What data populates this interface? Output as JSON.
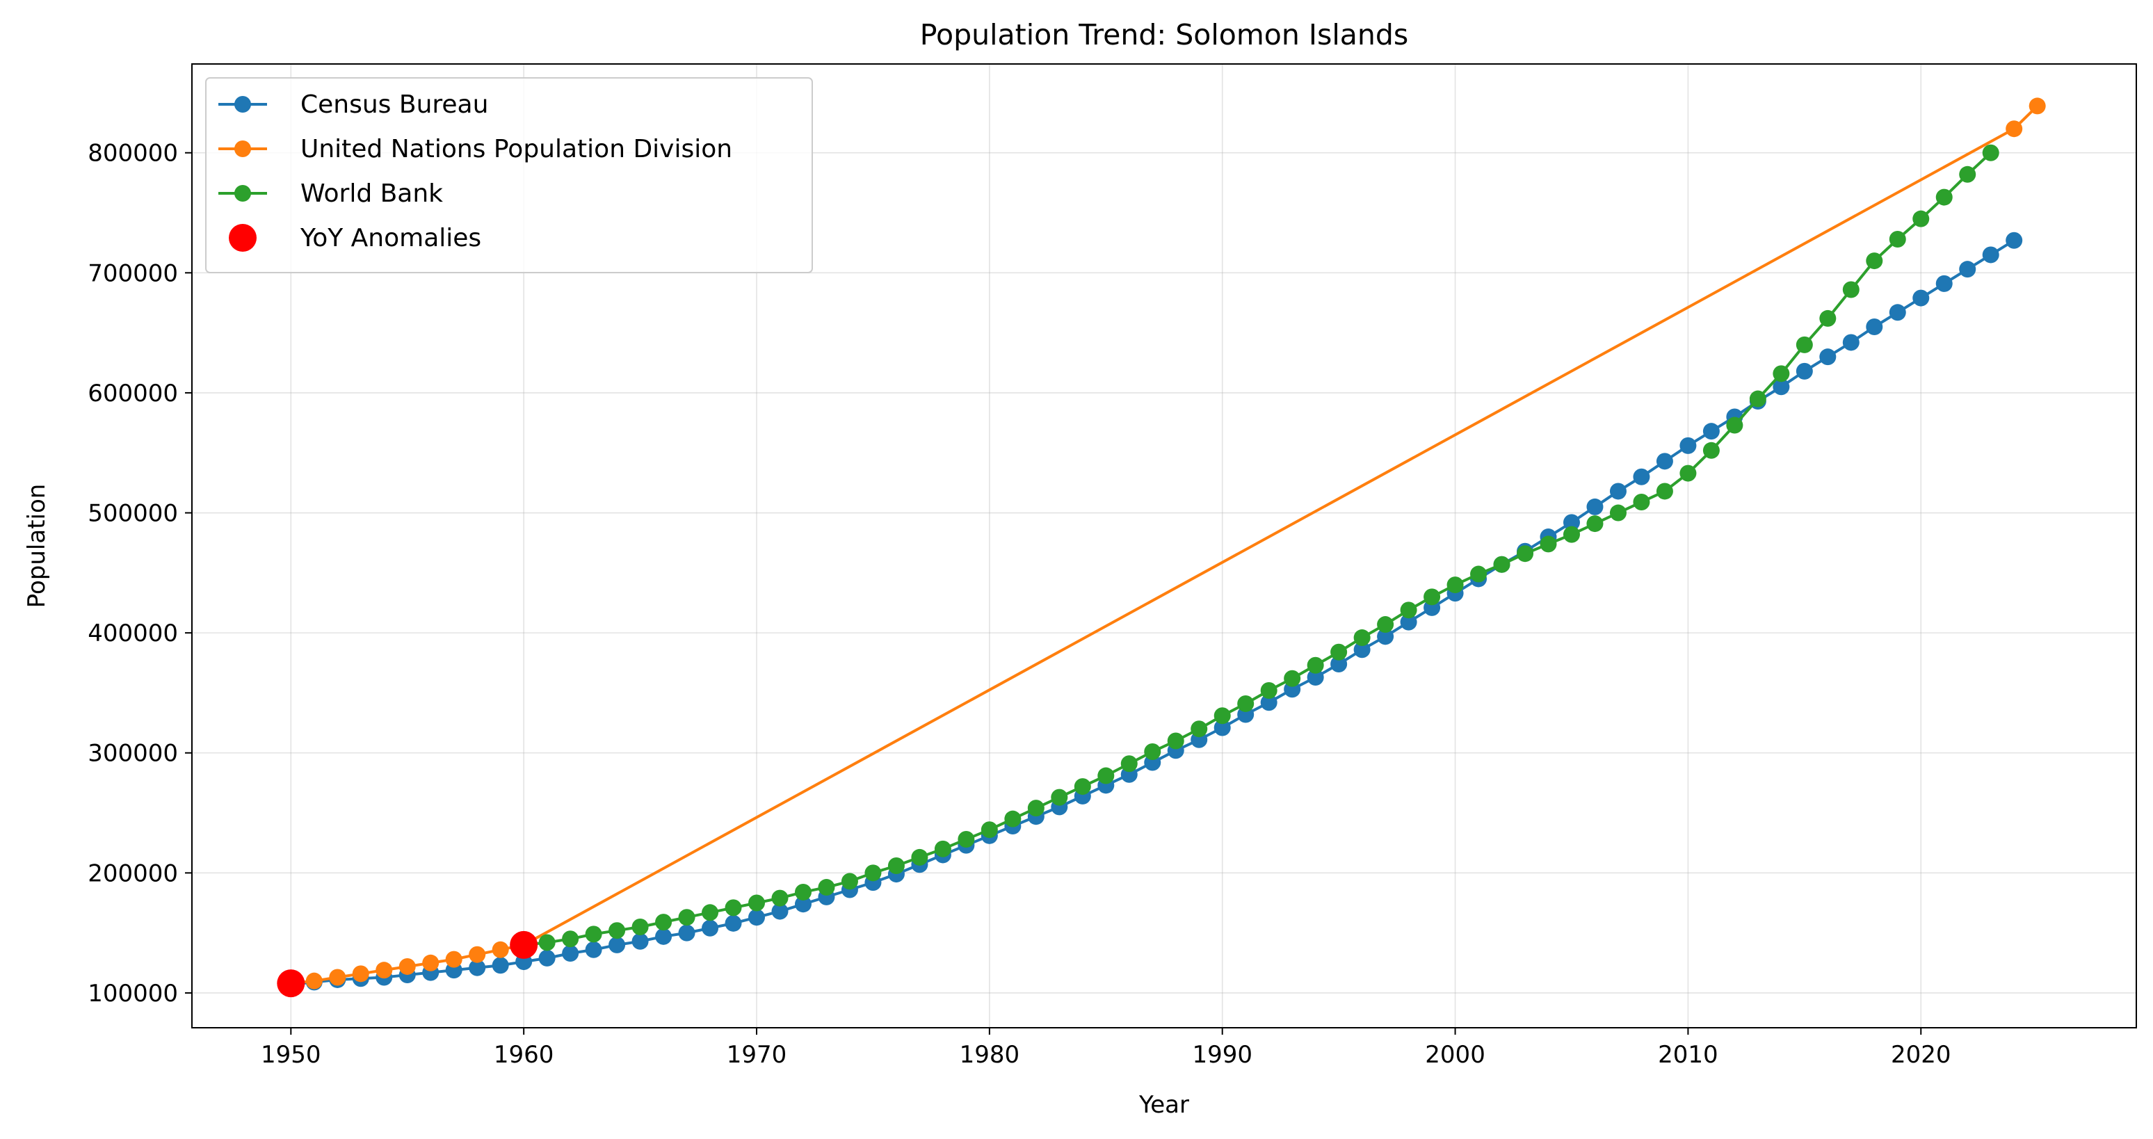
{
  "chart_data": {
    "type": "line",
    "title": "Population Trend: Solomon Islands",
    "xlabel": "Year",
    "ylabel": "Population",
    "xlim": [
      1945.75,
      2029.25
    ],
    "ylim": [
      71000,
      874000
    ],
    "xticks": [
      1950,
      1960,
      1970,
      1980,
      1990,
      2000,
      2010,
      2020
    ],
    "yticks": [
      100000,
      200000,
      300000,
      400000,
      500000,
      600000,
      700000,
      800000
    ],
    "grid": true,
    "legend_position": "top-left",
    "series": [
      {
        "name": "Census Bureau",
        "color": "#1f77b4",
        "x": [
          1950,
          1951,
          1952,
          1953,
          1954,
          1955,
          1956,
          1957,
          1958,
          1959,
          1960,
          1961,
          1962,
          1963,
          1964,
          1965,
          1966,
          1967,
          1968,
          1969,
          1970,
          1971,
          1972,
          1973,
          1974,
          1975,
          1976,
          1977,
          1978,
          1979,
          1980,
          1981,
          1982,
          1983,
          1984,
          1985,
          1986,
          1987,
          1988,
          1989,
          1990,
          1991,
          1992,
          1993,
          1994,
          1995,
          1996,
          1997,
          1998,
          1999,
          2000,
          2001,
          2002,
          2003,
          2004,
          2005,
          2006,
          2007,
          2008,
          2009,
          2010,
          2011,
          2012,
          2013,
          2014,
          2015,
          2016,
          2017,
          2018,
          2019,
          2020,
          2021,
          2022,
          2023,
          2024
        ],
        "y": [
          107000,
          109000,
          111000,
          112000,
          113000,
          115000,
          117000,
          119000,
          121000,
          123000,
          126000,
          129000,
          133000,
          136000,
          140000,
          143000,
          147000,
          150000,
          154000,
          158000,
          163000,
          168000,
          174000,
          180000,
          186000,
          192000,
          199000,
          207000,
          215000,
          223000,
          231000,
          239000,
          247000,
          255000,
          264000,
          273000,
          282000,
          292000,
          302000,
          311000,
          321000,
          332000,
          342000,
          353000,
          363000,
          374000,
          386000,
          397000,
          409000,
          421000,
          433000,
          445000,
          457000,
          468000,
          480000,
          492000,
          505000,
          518000,
          530000,
          543000,
          556000,
          568000,
          580000,
          593000,
          605000,
          618000,
          630000,
          642000,
          655000,
          667000,
          679000,
          691000,
          703000,
          715000,
          727000
        ]
      },
      {
        "name": "United Nations Population Division",
        "color": "#ff7f0e",
        "x": [
          1950,
          1951,
          1952,
          1953,
          1954,
          1955,
          1956,
          1957,
          1958,
          1959,
          1960,
          2024,
          2025
        ],
        "y": [
          108000,
          110000,
          113000,
          116000,
          119000,
          122000,
          125000,
          128000,
          132000,
          136000,
          140000,
          820000,
          839000
        ]
      },
      {
        "name": "World Bank",
        "color": "#2ca02c",
        "x": [
          1960,
          1961,
          1962,
          1963,
          1964,
          1965,
          1966,
          1967,
          1968,
          1969,
          1970,
          1971,
          1972,
          1973,
          1974,
          1975,
          1976,
          1977,
          1978,
          1979,
          1980,
          1981,
          1982,
          1983,
          1984,
          1985,
          1986,
          1987,
          1988,
          1989,
          1990,
          1991,
          1992,
          1993,
          1994,
          1995,
          1996,
          1997,
          1998,
          1999,
          2000,
          2001,
          2002,
          2003,
          2004,
          2005,
          2006,
          2007,
          2008,
          2009,
          2010,
          2011,
          2012,
          2013,
          2014,
          2015,
          2016,
          2017,
          2018,
          2019,
          2020,
          2021,
          2022,
          2023
        ],
        "y": [
          140000,
          142000,
          145000,
          149000,
          152000,
          155000,
          159000,
          163000,
          167000,
          171000,
          175000,
          179000,
          184000,
          188000,
          193000,
          200000,
          206000,
          213000,
          220000,
          228000,
          236000,
          245000,
          254000,
          263000,
          272000,
          281000,
          291000,
          301000,
          310000,
          320000,
          331000,
          341000,
          352000,
          362000,
          373000,
          384000,
          396000,
          407000,
          419000,
          430000,
          440000,
          449000,
          457000,
          466000,
          474000,
          482000,
          491000,
          500000,
          509000,
          518000,
          533000,
          552000,
          573000,
          595000,
          616000,
          640000,
          662000,
          686000,
          710000,
          728000,
          745000,
          763000,
          782000,
          800000
        ]
      },
      {
        "name": "YoY Anomalies",
        "color": "#ff0000",
        "marker_only": true,
        "x": [
          1950,
          1960
        ],
        "y": [
          108000,
          140000
        ]
      }
    ]
  }
}
